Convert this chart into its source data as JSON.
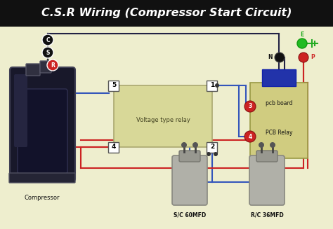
{
  "title": "C.S.R Wiring (Compressor Start Circuit)",
  "bg_color": "#eeeece",
  "title_bg": "#111111",
  "title_color": "#ffffff",
  "title_fontsize": 11.5,
  "wire_blue": "#3355bb",
  "wire_red": "#cc2222",
  "wire_dark": "#222244",
  "relay_box_color": "#d8d898",
  "pcb_box_color": "#d0cc80",
  "relay_label": "Voltage type relay",
  "pcb_label": "pcb board",
  "pcb_relay_label": "PCB Relay",
  "compressor_label": "Compressor",
  "sc_label": "S/C 60MFD",
  "rc_label": "R/C 36MFD",
  "csr_labels": [
    "C",
    "S",
    "R"
  ],
  "supply_labels": [
    "E",
    "N",
    "P"
  ]
}
